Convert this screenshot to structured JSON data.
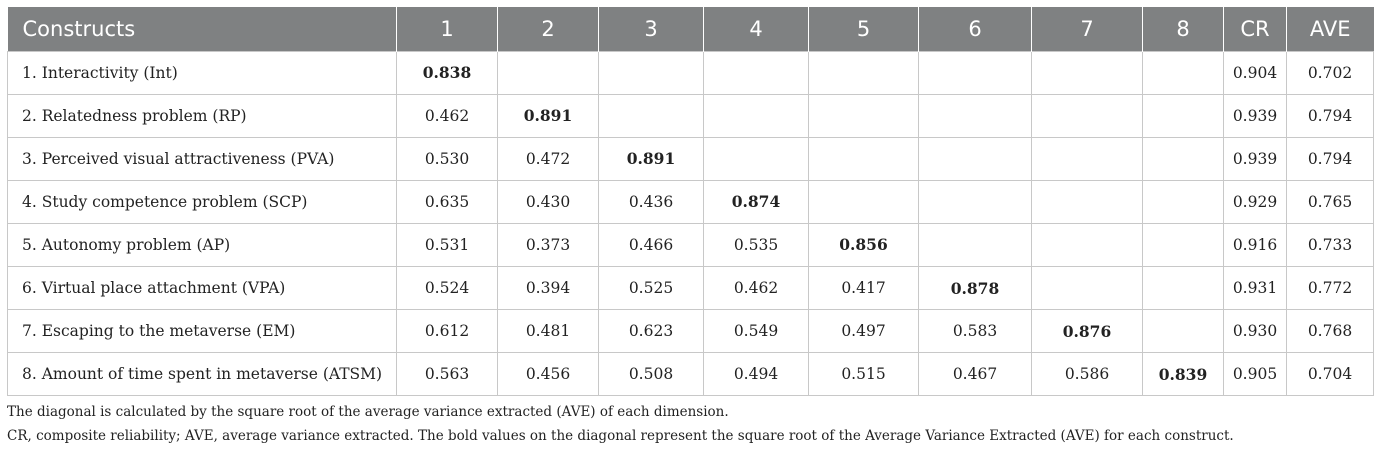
{
  "table": {
    "headers": [
      "Constructs",
      "1",
      "2",
      "3",
      "4",
      "5",
      "6",
      "7",
      "8",
      "CR",
      "AVE"
    ],
    "rows": [
      {
        "label": "1. Interactivity (Int)",
        "values": [
          "0.838",
          "",
          "",
          "",
          "",
          "",
          "",
          ""
        ],
        "cr": "0.904",
        "ave": "0.702"
      },
      {
        "label": "2. Relatedness problem (RP)",
        "values": [
          "0.462",
          "0.891",
          "",
          "",
          "",
          "",
          "",
          ""
        ],
        "cr": "0.939",
        "ave": "0.794"
      },
      {
        "label": "3. Perceived visual attractiveness (PVA)",
        "values": [
          "0.530",
          "0.472",
          "0.891",
          "",
          "",
          "",
          "",
          ""
        ],
        "cr": "0.939",
        "ave": "0.794"
      },
      {
        "label": "4. Study competence problem (SCP)",
        "values": [
          "0.635",
          "0.430",
          "0.436",
          "0.874",
          "",
          "",
          "",
          ""
        ],
        "cr": "0.929",
        "ave": "0.765"
      },
      {
        "label": "5. Autonomy problem (AP)",
        "values": [
          "0.531",
          "0.373",
          "0.466",
          "0.535",
          "0.856",
          "",
          "",
          ""
        ],
        "cr": "0.916",
        "ave": "0.733"
      },
      {
        "label": "6. Virtual place attachment (VPA)",
        "values": [
          "0.524",
          "0.394",
          "0.525",
          "0.462",
          "0.417",
          "0.878",
          "",
          ""
        ],
        "cr": "0.931",
        "ave": "0.772"
      },
      {
        "label": "7. Escaping to the metaverse (EM)",
        "values": [
          "0.612",
          "0.481",
          "0.623",
          "0.549",
          "0.497",
          "0.583",
          "0.876",
          ""
        ],
        "cr": "0.930",
        "ave": "0.768"
      },
      {
        "label": "8. Amount of time spent in metaverse (ATSM)",
        "values": [
          "0.563",
          "0.456",
          "0.508",
          "0.494",
          "0.515",
          "0.467",
          "0.586",
          "0.839"
        ],
        "cr": "0.905",
        "ave": "0.704"
      }
    ]
  },
  "notes": [
    "The diagonal is calculated by the square root of the average variance extracted (AVE) of each dimension.",
    "CR, composite reliability; AVE, average variance extracted. The bold values on the diagonal represent the square root of the Average Variance Extracted (AVE) for each construct."
  ],
  "colors": {
    "header_bg": "#7f8182",
    "header_text": "#ffffff",
    "grid": "#c8c8c8"
  }
}
